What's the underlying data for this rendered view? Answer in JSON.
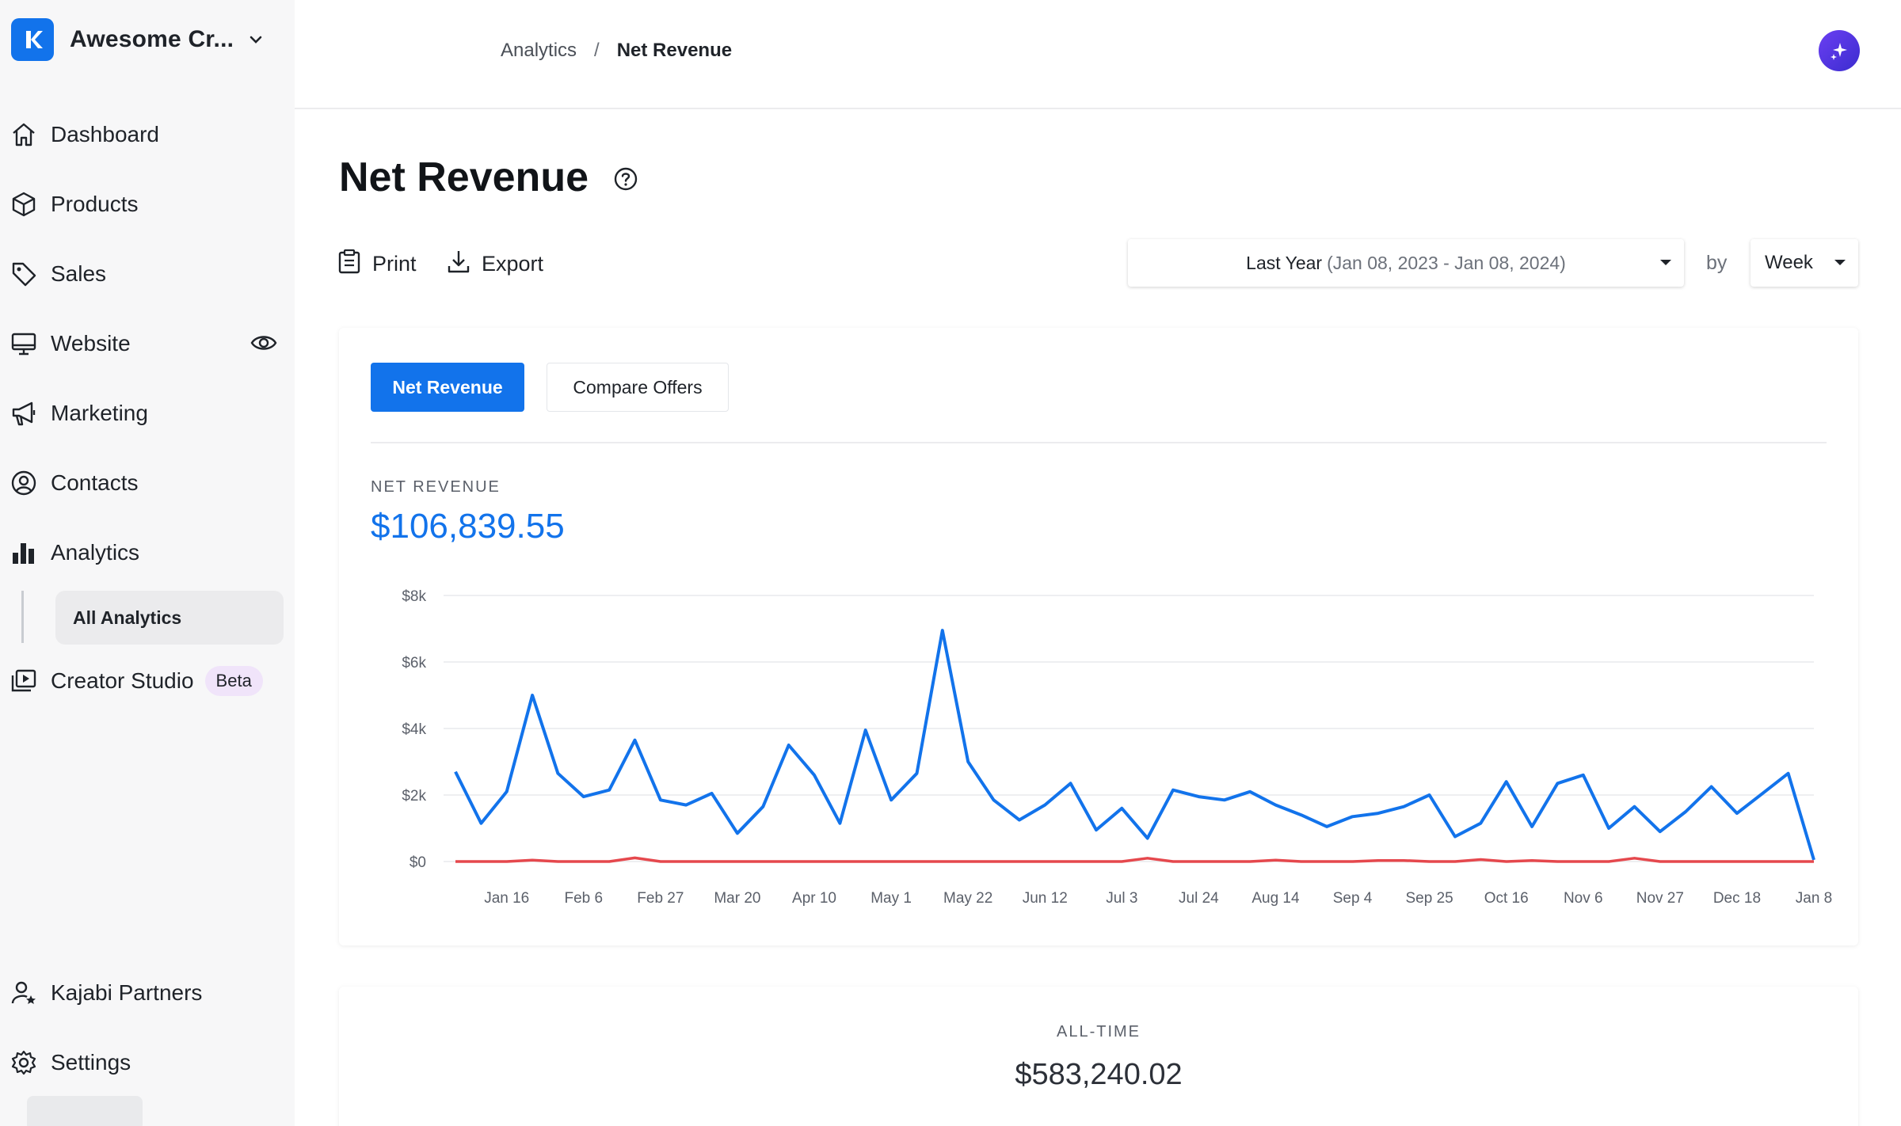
{
  "sidebar": {
    "brand_name": "Awesome Cr...",
    "items": [
      {
        "label": "Dashboard",
        "icon": "house-icon"
      },
      {
        "label": "Products",
        "icon": "box-icon"
      },
      {
        "label": "Sales",
        "icon": "tag-icon"
      },
      {
        "label": "Website",
        "icon": "monitor-icon"
      },
      {
        "label": "Marketing",
        "icon": "megaphone-icon"
      },
      {
        "label": "Contacts",
        "icon": "user-circle-icon"
      },
      {
        "label": "Analytics",
        "icon": "bar-chart-icon"
      },
      {
        "label": "Creator Studio",
        "icon": "play-stack-icon"
      },
      {
        "label": "Kajabi Partners",
        "icon": "user-star-icon"
      },
      {
        "label": "Settings",
        "icon": "gear-icon"
      }
    ],
    "sub_item": "All Analytics",
    "beta_badge": "Beta"
  },
  "header": {
    "breadcrumb_parent": "Analytics",
    "breadcrumb_separator": "/",
    "breadcrumb_current": "Net Revenue"
  },
  "page": {
    "title": "Net Revenue",
    "print_label": "Print",
    "export_label": "Export",
    "date_range_main": "Last Year",
    "date_range_detail": "(Jan 08, 2023  -  Jan 08, 2024)",
    "by_label": "by",
    "interval": "Week"
  },
  "tabs": {
    "net_revenue": "Net Revenue",
    "compare_offers": "Compare Offers"
  },
  "metric": {
    "label": "NET REVENUE",
    "value": "$106,839.55"
  },
  "alltime": {
    "label": "ALL-TIME",
    "value": "$583,240.02"
  },
  "colors": {
    "accent": "#1273eb",
    "series_refunds": "#e5484d"
  },
  "chart_data": {
    "type": "line",
    "y_ticks": [
      "$0",
      "$2k",
      "$4k",
      "$6k",
      "$8k"
    ],
    "ylim": [
      0,
      8000
    ],
    "x_ticks": [
      "Jan 16",
      "Feb 6",
      "Feb 27",
      "Mar 20",
      "Apr 10",
      "May 1",
      "May 22",
      "Jun 12",
      "Jul 3",
      "Jul 24",
      "Aug 14",
      "Sep 4",
      "Sep 25",
      "Oct 16",
      "Nov 6",
      "Nov 27",
      "Dec 18",
      "Jan 8"
    ],
    "grid": true,
    "series": [
      {
        "color": "#1273eb",
        "values": [
          2700,
          1150,
          2100,
          5000,
          2650,
          1950,
          2150,
          3650,
          1850,
          1700,
          2050,
          850,
          1650,
          3500,
          2600,
          1150,
          3950,
          1850,
          2650,
          6950,
          3000,
          1850,
          1250,
          1700,
          2350,
          950,
          1600,
          700,
          2150,
          1950,
          1850,
          2100,
          1700,
          1400,
          1050,
          1350,
          1450,
          1650,
          2000,
          750,
          1150,
          2400,
          1050,
          2350,
          2600,
          1000,
          1650,
          900,
          1500,
          2250,
          1450,
          2050,
          2650,
          50
        ]
      },
      {
        "color": "#e5484d",
        "values": [
          0,
          0,
          0,
          40,
          0,
          0,
          0,
          110,
          0,
          0,
          0,
          0,
          0,
          0,
          0,
          0,
          0,
          0,
          0,
          0,
          0,
          0,
          0,
          0,
          0,
          0,
          0,
          100,
          0,
          0,
          0,
          0,
          40,
          0,
          0,
          0,
          30,
          30,
          0,
          0,
          60,
          0,
          30,
          0,
          0,
          0,
          100,
          0,
          0,
          0,
          0,
          0,
          0,
          0
        ]
      }
    ]
  }
}
